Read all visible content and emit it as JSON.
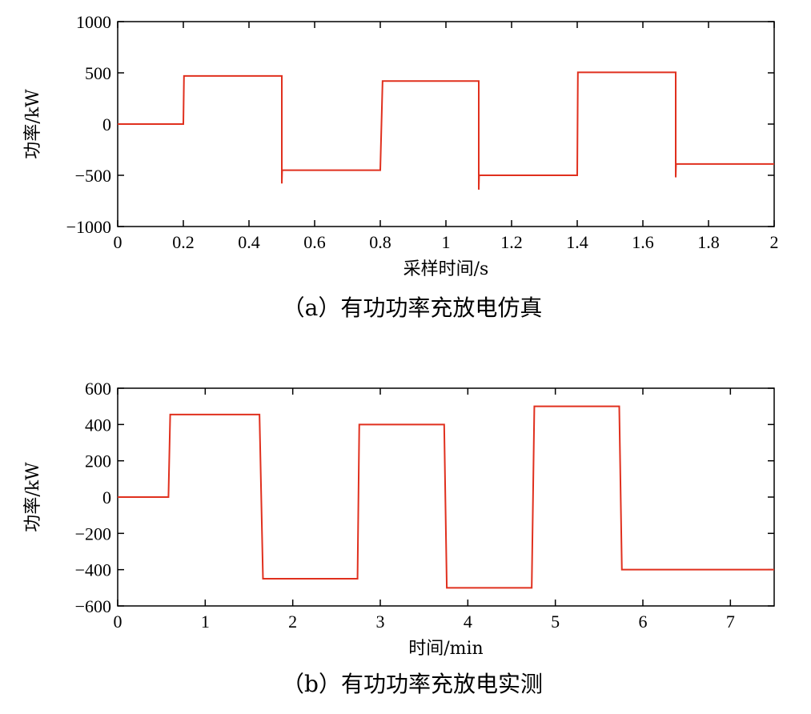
{
  "chart_data": [
    {
      "type": "line",
      "caption": "（a）有功功率充放电仿真",
      "xlabel": "采样时间/s",
      "ylabel": "功率/kW",
      "xlim": [
        0,
        2
      ],
      "ylim": [
        -1000,
        1000
      ],
      "xticks": [
        0,
        0.2,
        0.4,
        0.6,
        0.8,
        1,
        1.2,
        1.4,
        1.6,
        1.8,
        2
      ],
      "xtick_labels": [
        "0",
        "0.2",
        "0.4",
        "0.6",
        "0.8",
        "1",
        "1.2",
        "1.4",
        "1.6",
        "1.8",
        "2"
      ],
      "yticks": [
        1000,
        500,
        0,
        -500,
        -1000
      ],
      "ytick_labels": [
        "1000",
        "500",
        "0",
        "−500",
        "−1000"
      ],
      "grid": false,
      "color": "#e0301e",
      "series": [
        {
          "x": [
            0,
            0.2,
            0.202,
            0.5,
            0.5,
            0.501,
            0.502,
            0.8,
            0.807,
            1.1,
            1.1,
            1.101,
            1.102,
            1.4,
            1.402,
            1.7,
            1.7,
            1.701,
            1.702,
            2.0
          ],
          "y": [
            0,
            0,
            470,
            470,
            -580,
            -450,
            -450,
            -450,
            420,
            420,
            -640,
            -500,
            -500,
            -500,
            505,
            505,
            -520,
            -390,
            -390,
            -390
          ]
        }
      ]
    },
    {
      "type": "line",
      "caption": "（b）有功功率充放电实测",
      "xlabel": "时间/min",
      "ylabel": "功率/kW",
      "xlim": [
        0,
        7.5
      ],
      "ylim": [
        -600,
        600
      ],
      "xticks": [
        0,
        1,
        2,
        3,
        4,
        5,
        6,
        7
      ],
      "xtick_labels": [
        "0",
        "1",
        "2",
        "3",
        "4",
        "5",
        "6",
        "7"
      ],
      "yticks": [
        600,
        400,
        200,
        0,
        -200,
        -400,
        -600
      ],
      "ytick_labels": [
        "600",
        "400",
        "200",
        "0",
        "−200",
        "−400",
        "−600"
      ],
      "grid": false,
      "color": "#e0301e",
      "series": [
        {
          "x": [
            0,
            0.58,
            0.6,
            1.62,
            1.66,
            2.74,
            2.76,
            3.73,
            3.76,
            4.73,
            4.76,
            5.73,
            5.76,
            7.5
          ],
          "y": [
            0,
            0,
            455,
            455,
            -450,
            -450,
            400,
            400,
            -500,
            -500,
            500,
            500,
            -400,
            -400
          ]
        }
      ]
    }
  ]
}
